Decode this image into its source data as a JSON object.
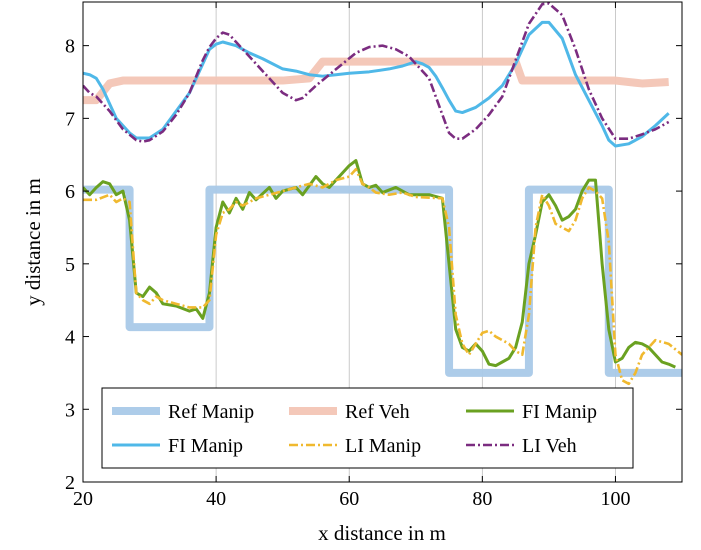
{
  "chart_data": {
    "type": "line",
    "title": "",
    "xlabel": "x distance in m",
    "ylabel": "y distance in m",
    "xlim": [
      20,
      110
    ],
    "ylim": [
      2,
      8.6
    ],
    "xticks": [
      20,
      40,
      60,
      80,
      100
    ],
    "yticks": [
      2,
      3,
      4,
      5,
      6,
      7,
      8
    ],
    "grid": "vertical-lines",
    "legend_position": "bottom-left, inside",
    "series": [
      {
        "name": "Ref Manip",
        "color": "#a9c9e8",
        "style": "thick-solid",
        "points": [
          [
            20,
            6.02
          ],
          [
            27,
            6.02
          ],
          [
            27,
            4.13
          ],
          [
            39,
            4.13
          ],
          [
            39,
            6.02
          ],
          [
            75,
            6.02
          ],
          [
            75,
            3.5
          ],
          [
            87,
            3.5
          ],
          [
            87,
            6.02
          ],
          [
            99,
            6.02
          ],
          [
            99,
            3.5
          ],
          [
            110,
            3.5
          ]
        ]
      },
      {
        "name": "Ref Veh",
        "color": "#f3c5b5",
        "style": "thick-solid",
        "points": [
          [
            20,
            7.25
          ],
          [
            22,
            7.25
          ],
          [
            24,
            7.48
          ],
          [
            26,
            7.52
          ],
          [
            50,
            7.52
          ],
          [
            54,
            7.55
          ],
          [
            56,
            7.78
          ],
          [
            85,
            7.78
          ],
          [
            86,
            7.52
          ],
          [
            100,
            7.52
          ],
          [
            104,
            7.48
          ],
          [
            108,
            7.5
          ]
        ]
      },
      {
        "name": "FI Manip",
        "color": "#6aa121",
        "style": "solid",
        "points": [
          [
            20,
            6.05
          ],
          [
            21,
            5.95
          ],
          [
            22,
            6.05
          ],
          [
            23,
            6.13
          ],
          [
            24,
            6.1
          ],
          [
            25,
            5.95
          ],
          [
            26,
            6.0
          ],
          [
            27,
            5.6
          ],
          [
            28,
            4.6
          ],
          [
            29,
            4.55
          ],
          [
            30,
            4.68
          ],
          [
            31,
            4.6
          ],
          [
            32,
            4.45
          ],
          [
            34,
            4.42
          ],
          [
            36,
            4.35
          ],
          [
            37,
            4.38
          ],
          [
            38,
            4.25
          ],
          [
            39,
            4.6
          ],
          [
            40,
            5.5
          ],
          [
            41,
            5.85
          ],
          [
            42,
            5.7
          ],
          [
            43,
            5.9
          ],
          [
            44,
            5.75
          ],
          [
            45,
            5.98
          ],
          [
            46,
            5.88
          ],
          [
            48,
            6.05
          ],
          [
            49,
            5.9
          ],
          [
            50,
            6.0
          ],
          [
            52,
            6.05
          ],
          [
            53,
            5.95
          ],
          [
            55,
            6.2
          ],
          [
            56,
            6.1
          ],
          [
            57,
            6.05
          ],
          [
            59,
            6.25
          ],
          [
            60,
            6.35
          ],
          [
            61,
            6.42
          ],
          [
            62,
            6.1
          ],
          [
            63,
            6.05
          ],
          [
            64,
            6.08
          ],
          [
            65,
            5.98
          ],
          [
            67,
            6.05
          ],
          [
            69,
            5.95
          ],
          [
            72,
            5.95
          ],
          [
            74,
            5.9
          ],
          [
            75,
            5.0
          ],
          [
            76,
            4.1
          ],
          [
            77,
            3.85
          ],
          [
            78,
            3.8
          ],
          [
            79,
            3.9
          ],
          [
            80,
            3.8
          ],
          [
            81,
            3.62
          ],
          [
            82,
            3.6
          ],
          [
            83,
            3.65
          ],
          [
            84,
            3.7
          ],
          [
            85,
            3.85
          ],
          [
            86,
            4.2
          ],
          [
            87,
            5.0
          ],
          [
            88,
            5.4
          ],
          [
            89,
            5.85
          ],
          [
            90,
            5.95
          ],
          [
            91,
            5.8
          ],
          [
            92,
            5.6
          ],
          [
            93,
            5.65
          ],
          [
            94,
            5.75
          ],
          [
            95,
            6.0
          ],
          [
            96,
            6.15
          ],
          [
            97,
            6.15
          ],
          [
            98,
            5.0
          ],
          [
            99,
            4.1
          ],
          [
            100,
            3.65
          ],
          [
            101,
            3.7
          ],
          [
            102,
            3.85
          ],
          [
            103,
            3.92
          ],
          [
            104,
            3.9
          ],
          [
            105,
            3.85
          ],
          [
            106,
            3.75
          ],
          [
            107,
            3.65
          ],
          [
            108,
            3.62
          ],
          [
            109,
            3.58
          ]
        ]
      },
      {
        "name": "FI Manip",
        "color": "#4fb8e8",
        "style": "solid",
        "points": [
          [
            20,
            7.62
          ],
          [
            21,
            7.6
          ],
          [
            22,
            7.55
          ],
          [
            23,
            7.4
          ],
          [
            25,
            7.0
          ],
          [
            27,
            6.8
          ],
          [
            28,
            6.73
          ],
          [
            30,
            6.73
          ],
          [
            32,
            6.85
          ],
          [
            34,
            7.1
          ],
          [
            36,
            7.35
          ],
          [
            38,
            7.75
          ],
          [
            39,
            7.95
          ],
          [
            40,
            8.02
          ],
          [
            41,
            8.05
          ],
          [
            43,
            8.0
          ],
          [
            45,
            7.9
          ],
          [
            47,
            7.82
          ],
          [
            50,
            7.68
          ],
          [
            52,
            7.65
          ],
          [
            54,
            7.6
          ],
          [
            56,
            7.58
          ],
          [
            58,
            7.6
          ],
          [
            60,
            7.62
          ],
          [
            63,
            7.64
          ],
          [
            66,
            7.68
          ],
          [
            68,
            7.72
          ],
          [
            70,
            7.78
          ],
          [
            71,
            7.75
          ],
          [
            72,
            7.7
          ],
          [
            73,
            7.58
          ],
          [
            74,
            7.42
          ],
          [
            75,
            7.25
          ],
          [
            76,
            7.1
          ],
          [
            77,
            7.08
          ],
          [
            79,
            7.15
          ],
          [
            81,
            7.28
          ],
          [
            83,
            7.45
          ],
          [
            85,
            7.75
          ],
          [
            87,
            8.15
          ],
          [
            89,
            8.32
          ],
          [
            90,
            8.32
          ],
          [
            92,
            8.1
          ],
          [
            94,
            7.6
          ],
          [
            96,
            7.25
          ],
          [
            98,
            6.9
          ],
          [
            99,
            6.7
          ],
          [
            100,
            6.62
          ],
          [
            102,
            6.65
          ],
          [
            104,
            6.75
          ],
          [
            106,
            6.9
          ],
          [
            108,
            7.07
          ]
        ]
      },
      {
        "name": "LI Manip",
        "color": "#f0b92f",
        "style": "dash-dot",
        "points": [
          [
            20,
            5.88
          ],
          [
            22,
            5.88
          ],
          [
            24,
            5.95
          ],
          [
            25,
            5.85
          ],
          [
            26,
            5.9
          ],
          [
            27,
            5.85
          ],
          [
            28,
            4.6
          ],
          [
            29,
            4.5
          ],
          [
            30,
            4.45
          ],
          [
            31,
            4.55
          ],
          [
            32,
            4.5
          ],
          [
            34,
            4.45
          ],
          [
            36,
            4.4
          ],
          [
            38,
            4.4
          ],
          [
            39,
            4.5
          ],
          [
            40,
            5.4
          ],
          [
            41,
            5.7
          ],
          [
            42,
            5.75
          ],
          [
            43,
            5.85
          ],
          [
            44,
            5.8
          ],
          [
            45,
            5.85
          ],
          [
            46,
            5.9
          ],
          [
            48,
            5.95
          ],
          [
            50,
            6.0
          ],
          [
            52,
            6.05
          ],
          [
            54,
            6.1
          ],
          [
            56,
            6.05
          ],
          [
            58,
            6.15
          ],
          [
            60,
            6.2
          ],
          [
            61,
            6.3
          ],
          [
            62,
            6.1
          ],
          [
            63,
            6.05
          ],
          [
            64,
            5.98
          ],
          [
            66,
            5.95
          ],
          [
            68,
            5.98
          ],
          [
            70,
            5.92
          ],
          [
            74,
            5.9
          ],
          [
            75,
            5.5
          ],
          [
            76,
            4.3
          ],
          [
            77,
            3.9
          ],
          [
            78,
            3.75
          ],
          [
            79,
            3.9
          ],
          [
            80,
            4.05
          ],
          [
            81,
            4.08
          ],
          [
            82,
            4.0
          ],
          [
            83,
            3.95
          ],
          [
            84,
            3.9
          ],
          [
            85,
            3.8
          ],
          [
            86,
            3.75
          ],
          [
            87,
            4.3
          ],
          [
            88,
            5.5
          ],
          [
            89,
            5.95
          ],
          [
            90,
            5.8
          ],
          [
            91,
            5.55
          ],
          [
            92,
            5.5
          ],
          [
            93,
            5.45
          ],
          [
            94,
            5.6
          ],
          [
            95,
            5.9
          ],
          [
            96,
            6.05
          ],
          [
            97,
            6.0
          ],
          [
            98,
            5.9
          ],
          [
            99,
            5.3
          ],
          [
            100,
            3.75
          ],
          [
            101,
            3.4
          ],
          [
            102,
            3.35
          ],
          [
            103,
            3.5
          ],
          [
            104,
            3.75
          ],
          [
            106,
            3.95
          ],
          [
            108,
            3.9
          ],
          [
            110,
            3.75
          ]
        ]
      },
      {
        "name": "LI Veh",
        "color": "#7b2c80",
        "style": "dash-dot",
        "points": [
          [
            20,
            7.45
          ],
          [
            21,
            7.35
          ],
          [
            22,
            7.3
          ],
          [
            24,
            7.1
          ],
          [
            26,
            6.85
          ],
          [
            28,
            6.7
          ],
          [
            29,
            6.68
          ],
          [
            30,
            6.7
          ],
          [
            32,
            6.82
          ],
          [
            34,
            7.05
          ],
          [
            36,
            7.35
          ],
          [
            38,
            7.8
          ],
          [
            39,
            7.98
          ],
          [
            40,
            8.1
          ],
          [
            41,
            8.18
          ],
          [
            42,
            8.15
          ],
          [
            44,
            7.95
          ],
          [
            46,
            7.75
          ],
          [
            48,
            7.55
          ],
          [
            50,
            7.35
          ],
          [
            52,
            7.25
          ],
          [
            53,
            7.28
          ],
          [
            55,
            7.45
          ],
          [
            57,
            7.6
          ],
          [
            59,
            7.75
          ],
          [
            61,
            7.9
          ],
          [
            63,
            7.98
          ],
          [
            65,
            8.0
          ],
          [
            67,
            7.95
          ],
          [
            69,
            7.85
          ],
          [
            70,
            7.75
          ],
          [
            71,
            7.65
          ],
          [
            72,
            7.55
          ],
          [
            73,
            7.3
          ],
          [
            74,
            7.05
          ],
          [
            75,
            6.8
          ],
          [
            76,
            6.72
          ],
          [
            77,
            6.72
          ],
          [
            79,
            6.85
          ],
          [
            81,
            7.05
          ],
          [
            83,
            7.3
          ],
          [
            85,
            7.8
          ],
          [
            87,
            8.3
          ],
          [
            89,
            8.57
          ],
          [
            90,
            8.58
          ],
          [
            92,
            8.42
          ],
          [
            94,
            7.95
          ],
          [
            96,
            7.4
          ],
          [
            98,
            7.0
          ],
          [
            100,
            6.72
          ],
          [
            102,
            6.72
          ],
          [
            104,
            6.78
          ],
          [
            106,
            6.85
          ],
          [
            108,
            6.95
          ]
        ]
      }
    ]
  }
}
